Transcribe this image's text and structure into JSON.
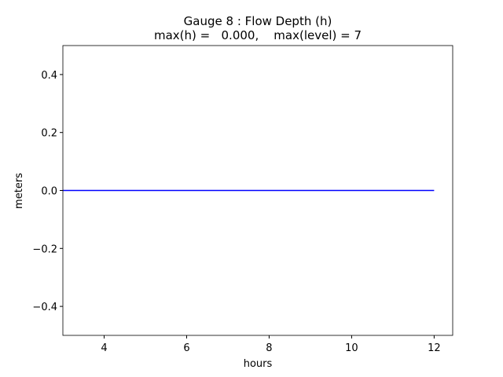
{
  "chart_data": {
    "type": "line",
    "title": "Gauge 8 : Flow Depth (h)",
    "subtitle": "max(h) =   0.000,    max(level) = 7",
    "x_label": "hours",
    "y_label": "meters",
    "x": [
      3,
      12
    ],
    "series": [
      {
        "name": "h",
        "color": "#0000ff",
        "values": [
          0,
          0
        ]
      }
    ],
    "xlim": [
      3,
      12.45
    ],
    "xticks": [
      4,
      6,
      8,
      10,
      12
    ],
    "ylim": [
      -0.5,
      0.5
    ],
    "yticks": [
      {
        "value": -0.4,
        "label": "−0.4"
      },
      {
        "value": -0.2,
        "label": "−0.2"
      },
      {
        "value": 0,
        "label": "0.0"
      },
      0.2,
      0.4
    ],
    "grid": false
  }
}
